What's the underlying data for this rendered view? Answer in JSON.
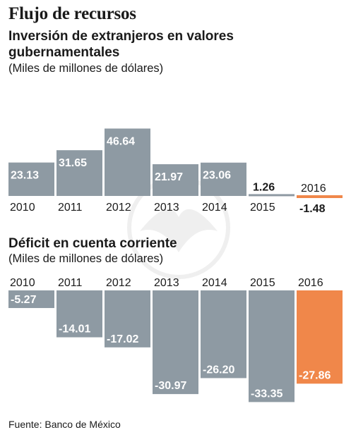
{
  "title": "Flujo de recursos",
  "source": "Fuente: Banco de México",
  "colors": {
    "bar": "#8e9aa3",
    "highlight": "#f0874a",
    "text_on_bar": "#ffffff"
  },
  "chart_data": [
    {
      "type": "bar",
      "title": "Inversión de extranjeros en valores gubernamentales",
      "subtitle": "(Miles de millones de dólares)",
      "categories": [
        "2010",
        "2011",
        "2012",
        "2013",
        "2014",
        "2015",
        "2016"
      ],
      "values": [
        23.13,
        31.65,
        46.64,
        21.97,
        23.06,
        1.26,
        -1.48
      ],
      "value_labels": [
        "23.13",
        "31.65",
        "46.64",
        "21.97",
        "23.06",
        "1.26",
        "-1.48"
      ],
      "highlight_index": 6
    },
    {
      "type": "bar",
      "title": "Déficit en cuenta corriente",
      "subtitle": "(Miles de millones de dólares)",
      "categories": [
        "2010",
        "2011",
        "2012",
        "2013",
        "2014",
        "2015",
        "2016"
      ],
      "values": [
        -5.27,
        -14.01,
        -17.02,
        -30.97,
        -26.2,
        -33.35,
        -27.86
      ],
      "value_labels": [
        "-5.27",
        "-14.01",
        "-17.02",
        "-30.97",
        "-26.20",
        "-33.35",
        "-27.86"
      ],
      "highlight_index": 6
    }
  ]
}
